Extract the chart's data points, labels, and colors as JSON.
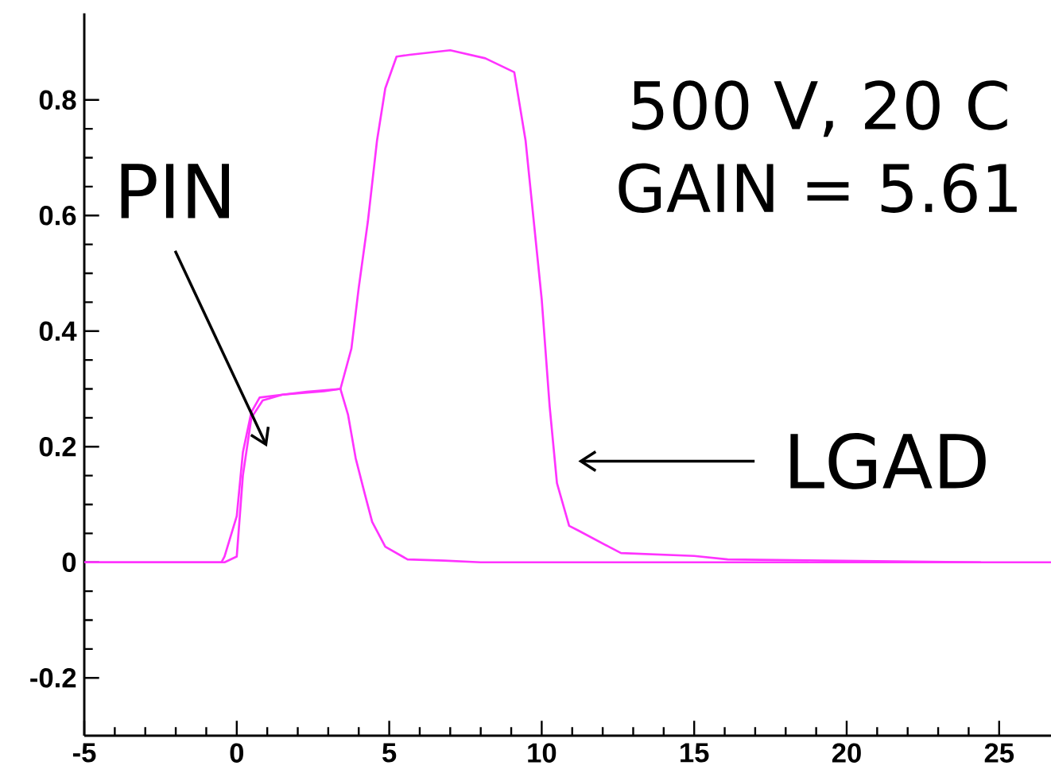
{
  "chart_data": {
    "type": "line",
    "xlim": [
      -5,
      26.7
    ],
    "ylim": [
      -0.3,
      0.95
    ],
    "xticks": [
      -5,
      0,
      5,
      10,
      15,
      20,
      25
    ],
    "yticks": [
      -0.2,
      0,
      0.2,
      0.4,
      0.6,
      0.8
    ],
    "marker": "none",
    "line_style": "solid",
    "series": [
      {
        "color": "#ff33ff",
        "x": [
          -5,
          -0.4,
          0,
          0.2,
          0.48,
          0.85,
          1.5,
          2.86,
          3.4,
          3.76,
          4.0,
          4.3,
          4.6,
          4.87,
          5.24,
          5.66,
          7.0,
          8.15,
          9.1,
          9.47,
          9.74,
          10.0,
          10.26,
          10.5,
          10.9,
          11.2,
          12.2,
          12.6,
          15.0,
          16.1,
          19.3,
          24.4
        ],
        "values": [
          0,
          0,
          0.01,
          0.15,
          0.25,
          0.28,
          0.29,
          0.296,
          0.3,
          0.37,
          0.475,
          0.59,
          0.73,
          0.82,
          0.875,
          0.878,
          0.886,
          0.872,
          0.848,
          0.73,
          0.59,
          0.455,
          0.27,
          0.137,
          0.063,
          0.055,
          0.027,
          0.016,
          0.011,
          0.005,
          0.003,
          0
        ]
      },
      {
        "color": "#ff33ff",
        "x": [
          -5,
          -0.5,
          -0.4,
          0,
          0.2,
          0.48,
          0.75,
          1.5,
          2.3,
          3.4,
          3.65,
          3.9,
          4.2,
          4.44,
          4.87,
          5.6,
          6.8,
          8,
          26.7
        ],
        "values": [
          0,
          0,
          0.01,
          0.08,
          0.19,
          0.26,
          0.285,
          0.29,
          0.295,
          0.3,
          0.255,
          0.18,
          0.118,
          0.07,
          0.027,
          0.005,
          0.003,
          0,
          0
        ]
      }
    ],
    "annotations": [
      "PIN",
      "LGAD",
      "500 V, 20 C",
      "GAIN = 5.61"
    ]
  }
}
